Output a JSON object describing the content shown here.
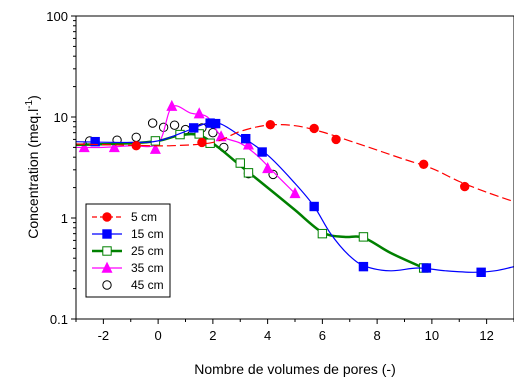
{
  "chart_data": {
    "type": "line",
    "xlabel": "Nombre de volumes de pores (-)",
    "ylabel": "Concentration (meq.l",
    "ylabel_sup": "-1",
    "ylabel_close": ")",
    "xlim": [
      -3,
      13
    ],
    "ylim": [
      0.1,
      100
    ],
    "yscale": "log",
    "x_ticks": [
      -2,
      0,
      2,
      4,
      6,
      8,
      10,
      12
    ],
    "x_tick_labels": [
      "-2",
      "0",
      "2",
      "4",
      "6",
      "8",
      "10",
      "12"
    ],
    "y_ticks": [
      0.1,
      1,
      10,
      100
    ],
    "y_tick_labels": [
      "0.1",
      "1",
      "10",
      "100"
    ],
    "grid": false,
    "legend_position": "bottom-left",
    "series": [
      {
        "name": "5 cm",
        "color": "#ff0000",
        "marker": "circle-filled",
        "line_style": "dashed",
        "points": [
          [
            -0.8,
            5.2
          ],
          [
            1.6,
            5.6
          ],
          [
            4.1,
            8.4
          ],
          [
            5.7,
            7.7
          ],
          [
            6.5,
            6.0
          ],
          [
            9.7,
            3.4
          ],
          [
            11.2,
            2.05
          ]
        ],
        "curve": [
          [
            -3,
            5.4
          ],
          [
            -1,
            5.25
          ],
          [
            0.5,
            5.2
          ],
          [
            2,
            5.6
          ],
          [
            3,
            7.2
          ],
          [
            4,
            8.3
          ],
          [
            5,
            8.2
          ],
          [
            6,
            7.1
          ],
          [
            7,
            5.8
          ],
          [
            8,
            4.7
          ],
          [
            9,
            3.8
          ],
          [
            10,
            3.1
          ],
          [
            11,
            2.3
          ],
          [
            12,
            1.8
          ],
          [
            13,
            1.45
          ]
        ]
      },
      {
        "name": "15 cm",
        "color": "#0000ff",
        "marker": "square-filled",
        "line_style": "solid",
        "points": [
          [
            -2.3,
            5.7
          ],
          [
            1.3,
            7.8
          ],
          [
            1.9,
            8.7
          ],
          [
            2.1,
            8.6
          ],
          [
            3.2,
            6.1
          ],
          [
            3.8,
            4.5
          ],
          [
            5.7,
            1.3
          ],
          [
            7.5,
            0.33
          ],
          [
            9.8,
            0.32
          ],
          [
            11.8,
            0.29
          ]
        ],
        "curve": [
          [
            -3,
            5.7
          ],
          [
            -1,
            5.6
          ],
          [
            0,
            5.8
          ],
          [
            1,
            7.2
          ],
          [
            1.8,
            8.7
          ],
          [
            2.3,
            8.5
          ],
          [
            3,
            6.5
          ],
          [
            4,
            4.2
          ],
          [
            5,
            2.2
          ],
          [
            5.7,
            1.3
          ],
          [
            6.3,
            0.7
          ],
          [
            7,
            0.42
          ],
          [
            7.6,
            0.33
          ],
          [
            8.5,
            0.3
          ],
          [
            9.5,
            0.32
          ],
          [
            10.5,
            0.3
          ],
          [
            11.5,
            0.29
          ],
          [
            12.3,
            0.3
          ],
          [
            13,
            0.33
          ]
        ]
      },
      {
        "name": "25 cm",
        "color": "#008000",
        "marker": "square-open",
        "line_style": "solid",
        "line_width": 2.5,
        "points": [
          [
            -0.1,
            5.8
          ],
          [
            0.8,
            6.7
          ],
          [
            1.5,
            6.8
          ],
          [
            1.9,
            5.5
          ],
          [
            3.0,
            3.5
          ],
          [
            3.3,
            2.8
          ],
          [
            6.0,
            0.7
          ],
          [
            7.5,
            0.65
          ],
          [
            9.7,
            0.32
          ]
        ],
        "curve": [
          [
            -3,
            5.3
          ],
          [
            -1,
            5.5
          ],
          [
            0,
            5.8
          ],
          [
            0.8,
            6.6
          ],
          [
            1.5,
            6.6
          ],
          [
            2.2,
            5.0
          ],
          [
            3,
            3.3
          ],
          [
            4,
            2.0
          ],
          [
            5,
            1.2
          ],
          [
            6,
            0.72
          ],
          [
            6.8,
            0.65
          ],
          [
            7.5,
            0.64
          ],
          [
            8.5,
            0.45
          ],
          [
            9.7,
            0.32
          ]
        ]
      },
      {
        "name": "35 cm",
        "color": "#ff00ff",
        "marker": "triangle-filled",
        "line_style": "solid",
        "points": [
          [
            -2.7,
            5.0
          ],
          [
            -1.6,
            5.0
          ],
          [
            -0.1,
            4.8
          ],
          [
            0.5,
            12.8
          ],
          [
            1.5,
            10.8
          ],
          [
            2.3,
            6.4
          ],
          [
            3.3,
            5.3
          ],
          [
            4.0,
            3.1
          ],
          [
            5.0,
            1.75
          ]
        ],
        "curve": [
          [
            -3,
            5.0
          ],
          [
            -2,
            5.0
          ],
          [
            -1,
            5.2
          ],
          [
            0,
            5.5
          ],
          [
            0.5,
            12.5
          ],
          [
            1.2,
            10.9
          ],
          [
            1.8,
            10.0
          ],
          [
            2.3,
            6.5
          ],
          [
            3,
            5.5
          ],
          [
            3.6,
            4.2
          ],
          [
            4.3,
            2.7
          ],
          [
            5,
            1.75
          ]
        ]
      },
      {
        "name": "45 cm",
        "color": "#000000",
        "marker": "circle-open",
        "line_style": "none",
        "points": [
          [
            -2.5,
            5.8
          ],
          [
            -1.5,
            5.9
          ],
          [
            -0.8,
            6.3
          ],
          [
            -0.2,
            8.7
          ],
          [
            0.2,
            7.9
          ],
          [
            0.6,
            8.3
          ],
          [
            1.0,
            7.5
          ],
          [
            1.6,
            7.8
          ],
          [
            2.0,
            7.0
          ],
          [
            2.4,
            5.0
          ],
          [
            3.3,
            2.75
          ],
          [
            4.2,
            2.7
          ]
        ]
      }
    ]
  }
}
